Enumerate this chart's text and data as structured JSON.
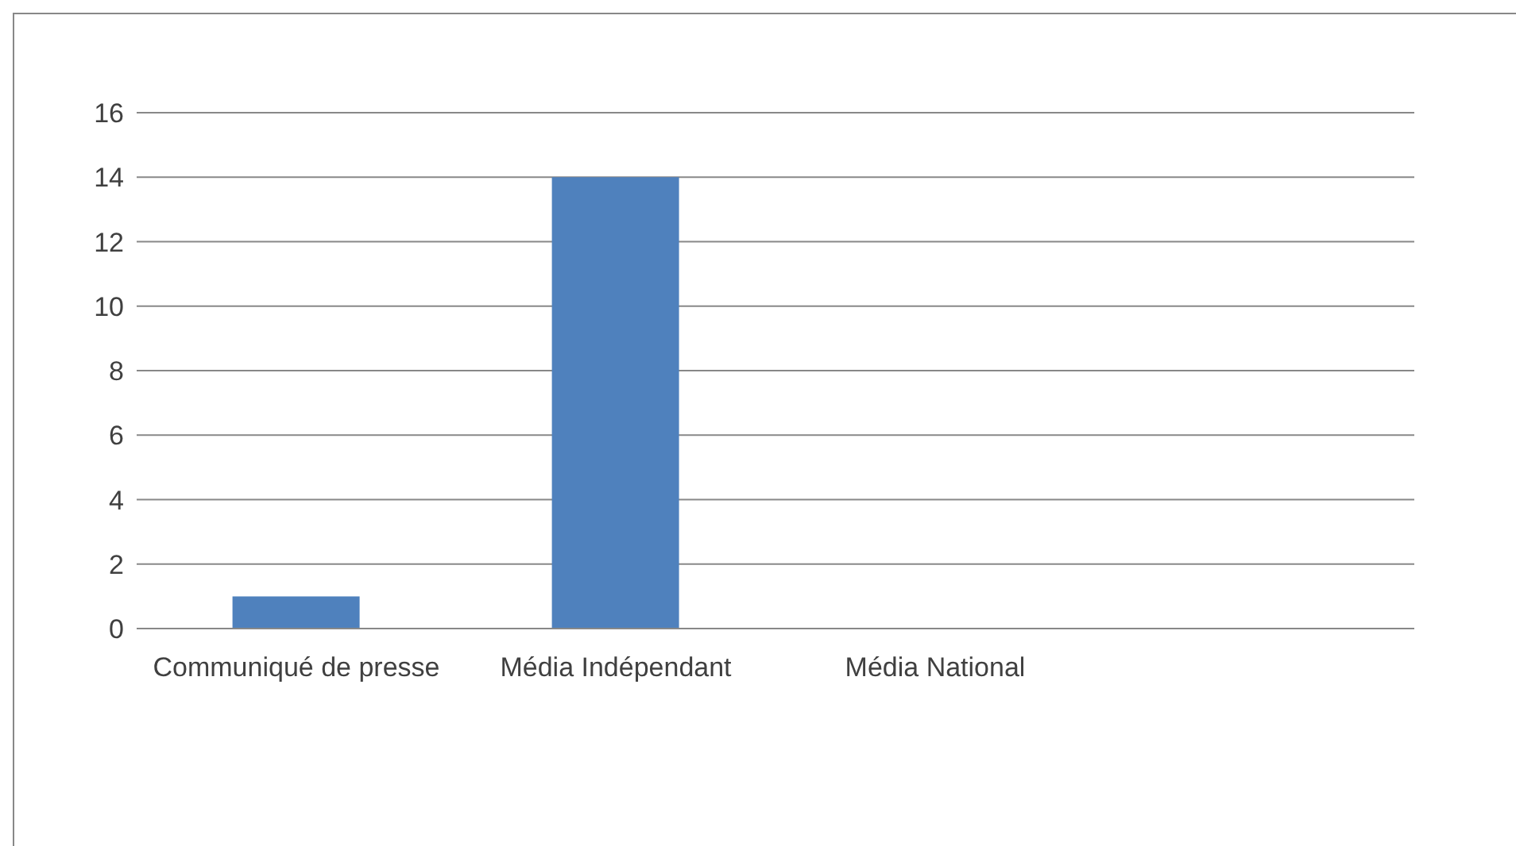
{
  "chart_data": {
    "type": "bar",
    "categories": [
      "Communiqué de presse",
      "Média Indépendant",
      "Média National",
      null
    ],
    "values": [
      1,
      14,
      0,
      0
    ],
    "color": "#4f81bd",
    "ylim": [
      0,
      16
    ],
    "yticks": [
      0,
      2,
      4,
      6,
      8,
      10,
      12,
      14,
      16
    ],
    "grid": "y"
  }
}
